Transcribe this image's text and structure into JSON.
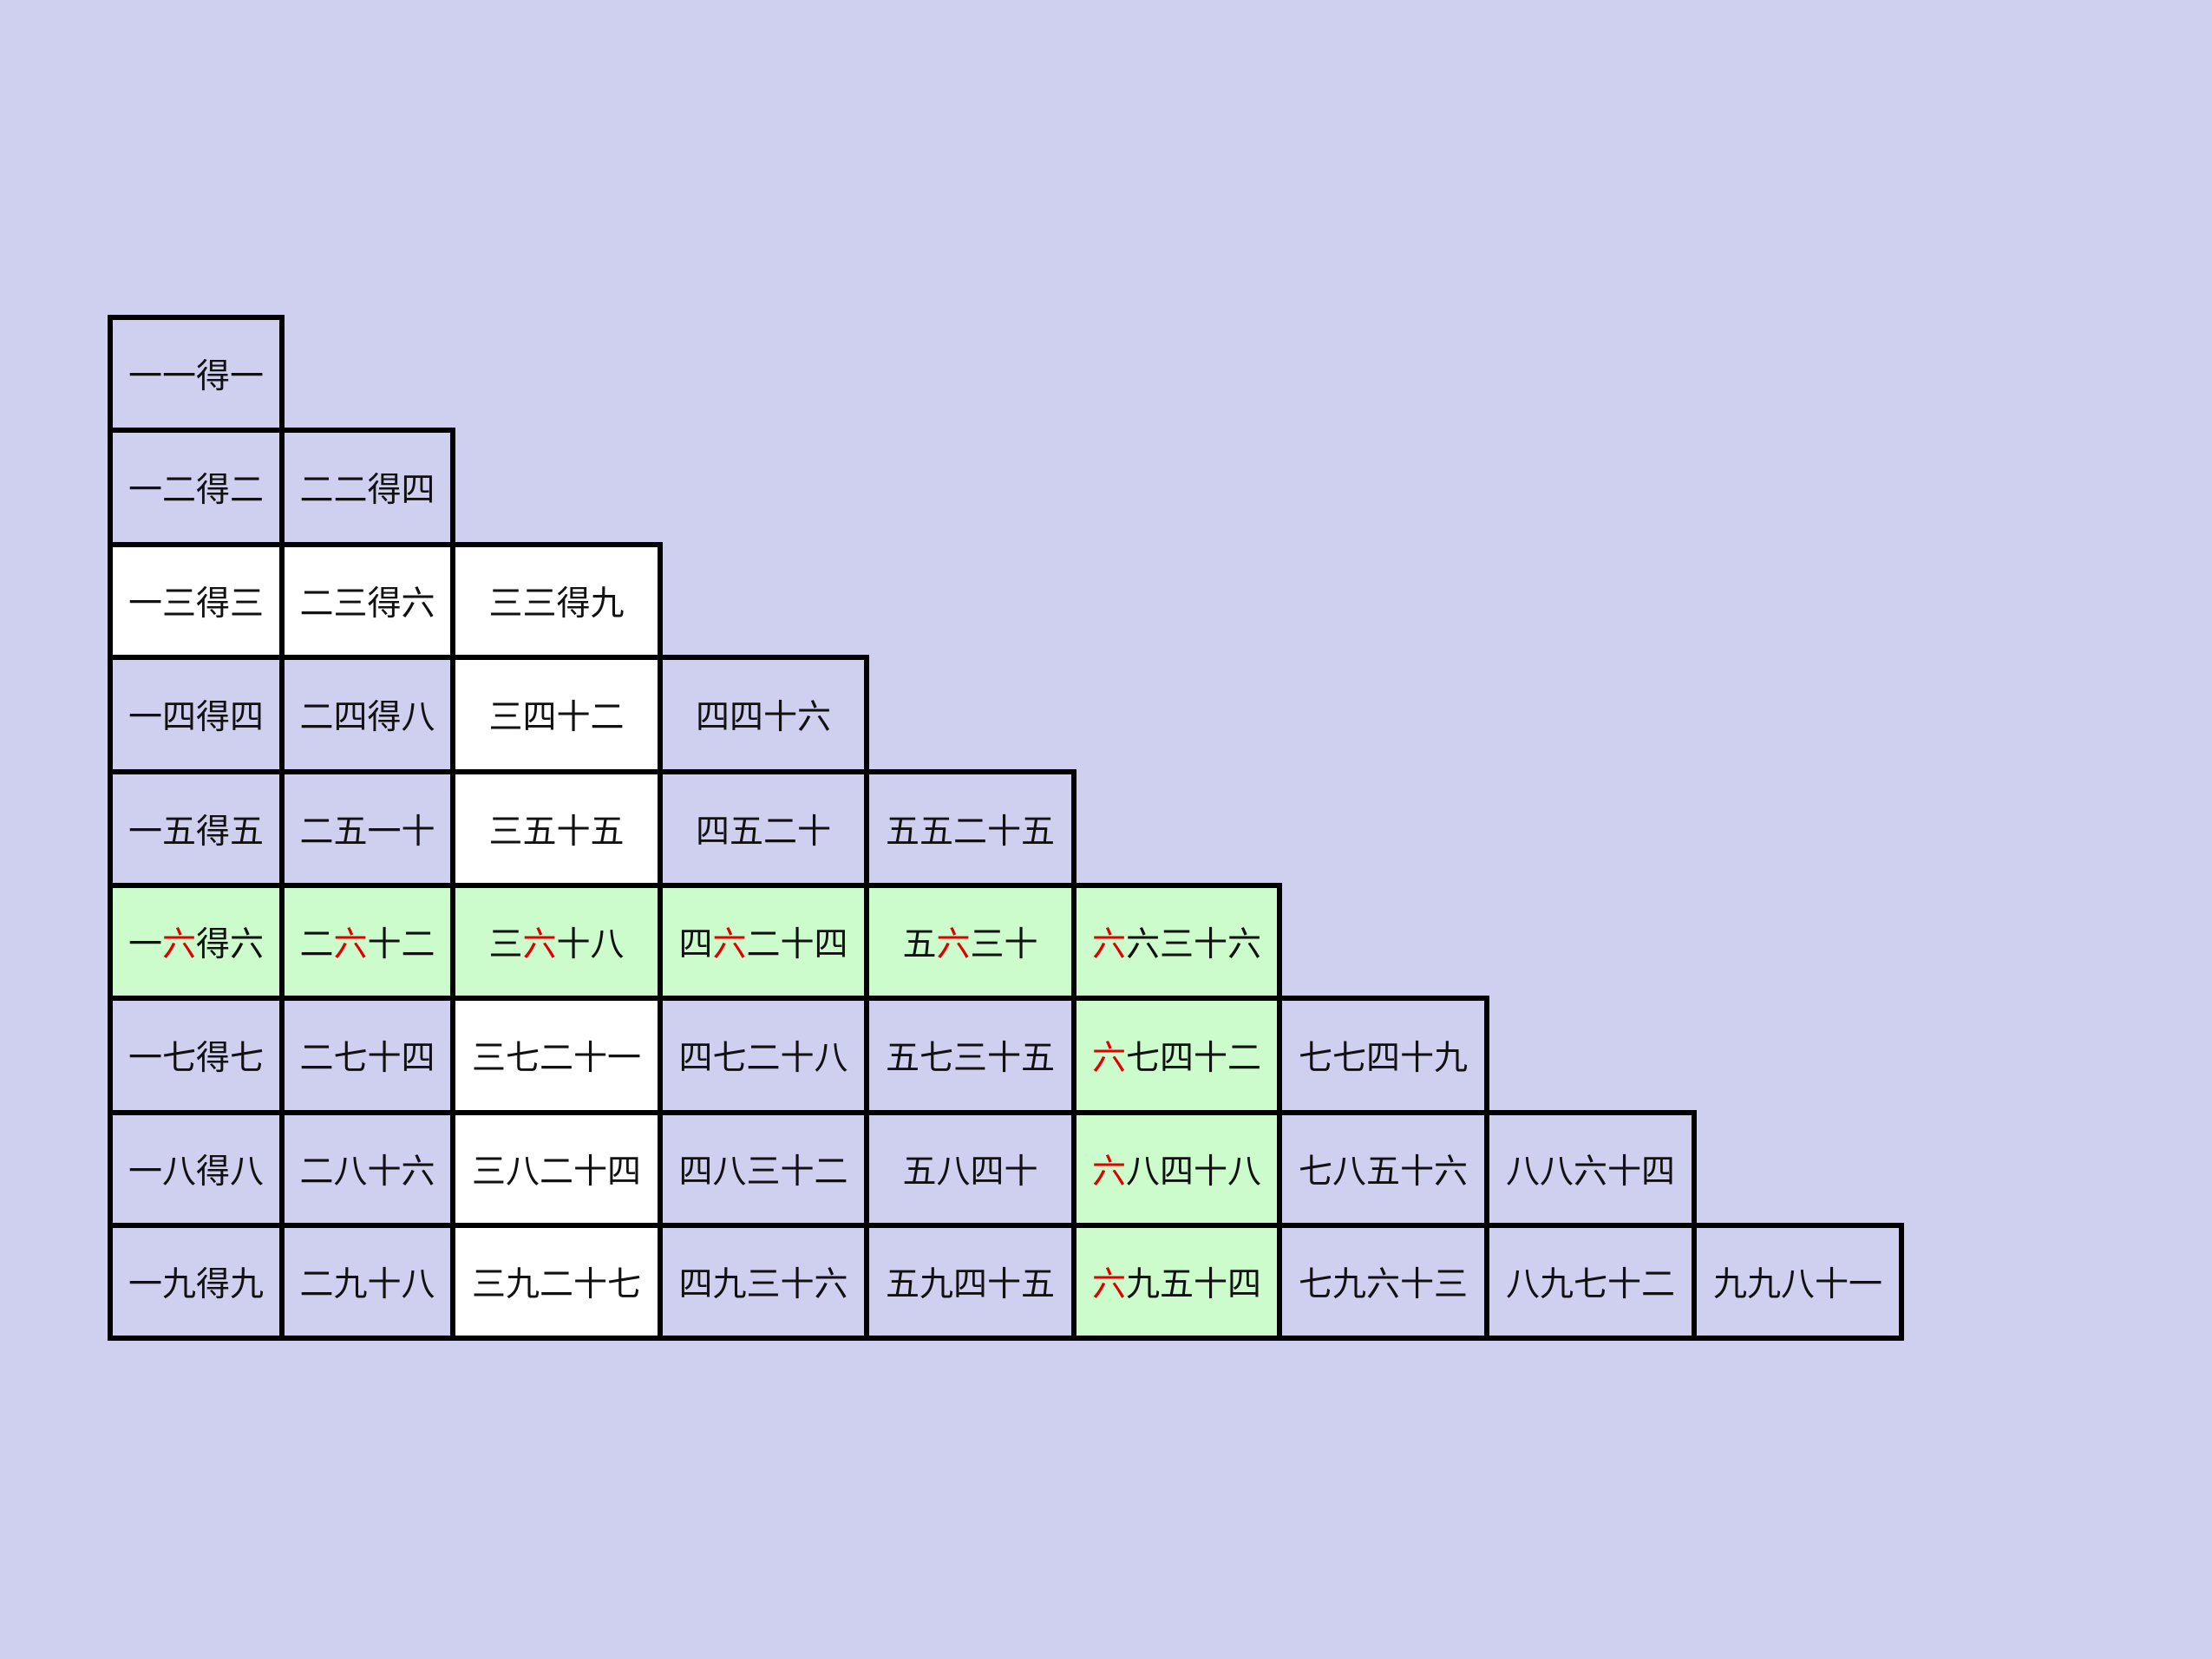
{
  "table": {
    "rows": [
      [
        "一一得一"
      ],
      [
        "一二得二",
        "二二得四"
      ],
      [
        "一三得三",
        "二三得六",
        "三三得九"
      ],
      [
        "一四得四",
        "二四得八",
        "三四十二",
        "四四十六"
      ],
      [
        "一五得五",
        "二五一十",
        "三五十五",
        "四五二十",
        "五五二十五"
      ],
      [
        "一六得六",
        "二六十二",
        "三六十八",
        "四六二十四",
        "五六三十",
        "六六三十六"
      ],
      [
        "一七得七",
        "二七十四",
        "三七二十一",
        "四七二十八",
        "五七三十五",
        "六七四十二",
        "七七四十九"
      ],
      [
        "一八得八",
        "二八十六",
        "三八二十四",
        "四八三十二",
        "五八四十",
        "六八四十八",
        "七八五十六",
        "八八六十四"
      ],
      [
        "一九得九",
        "二九十八",
        "三九二十七",
        "四九三十六",
        "五九四十五",
        "六九五十四",
        "七九六十三",
        "八九七十二",
        "九九八十一"
      ]
    ]
  }
}
